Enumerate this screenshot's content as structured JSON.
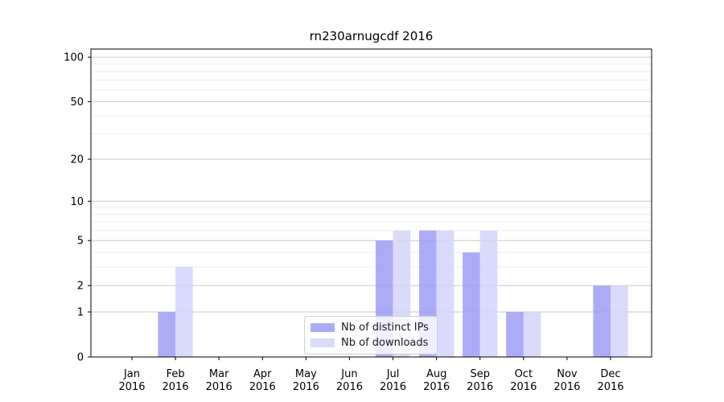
{
  "chart_data": {
    "type": "bar",
    "title": "rn230arnugcdf 2016",
    "categories": [
      "Jan",
      "Feb",
      "Mar",
      "Apr",
      "May",
      "Jun",
      "Jul",
      "Aug",
      "Sep",
      "Oct",
      "Nov",
      "Dec"
    ],
    "category_sublabel": "2016",
    "series": [
      {
        "name": "Nb of distinct IPs",
        "color": "#9d9df5",
        "values": [
          0,
          1,
          0,
          0,
          0,
          0,
          5,
          6,
          4,
          1,
          0,
          2
        ]
      },
      {
        "name": "Nb of downloads",
        "color": "#d4d4fa",
        "values": [
          0,
          3,
          0,
          0,
          0,
          0,
          6,
          6,
          6,
          1,
          0,
          2
        ]
      }
    ],
    "xlabel": "",
    "ylabel": "",
    "y_scale": "log1p",
    "y_major_ticks": [
      0,
      1,
      2,
      5,
      10,
      20,
      50,
      100
    ],
    "y_minor_gridlines": [
      3,
      4,
      6,
      7,
      8,
      9,
      30,
      40,
      60,
      70,
      80,
      90
    ],
    "ylim": [
      0,
      113.5
    ],
    "grid": "horizontal, major and minor, on",
    "legend_position": "lower center inside axes",
    "bar_alpha": 0.85,
    "colors": {
      "major_grid": "#c9c9c9",
      "minor_grid": "#ededed",
      "axis": "#000000",
      "tick_text": "#000000"
    }
  }
}
